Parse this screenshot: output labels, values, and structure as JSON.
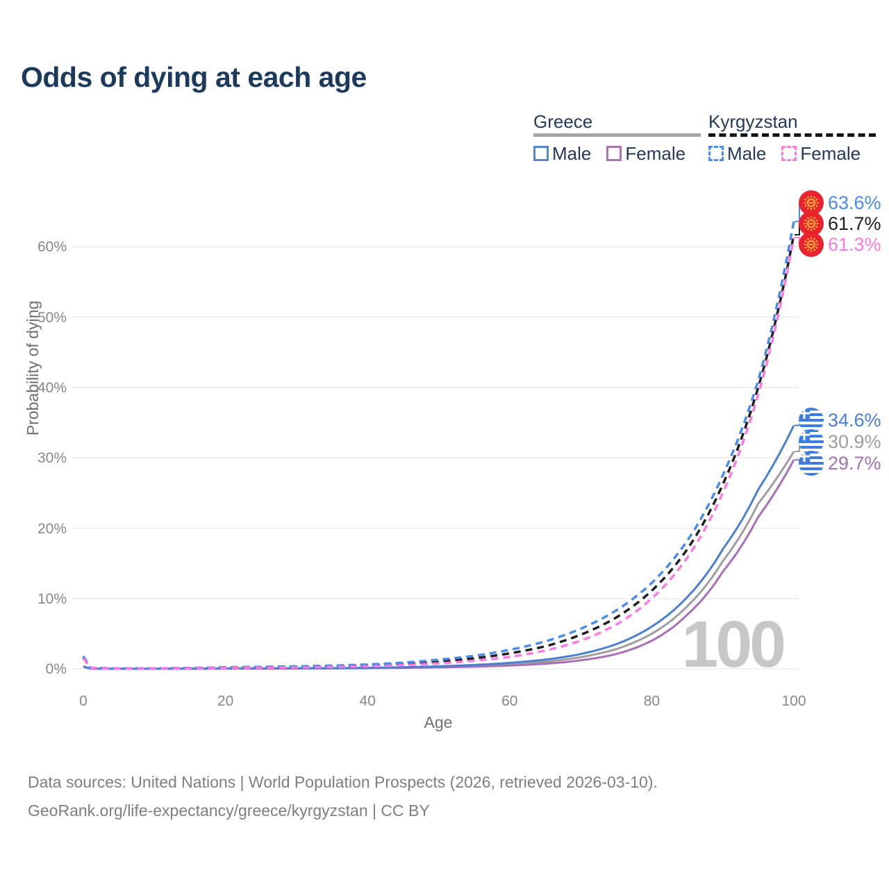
{
  "title": "Odds of dying at each age",
  "legend": {
    "groups": [
      {
        "id": "greece",
        "label": "Greece",
        "style": "solid",
        "items": [
          {
            "label": "Male"
          },
          {
            "label": "Female"
          }
        ]
      },
      {
        "id": "kyrgyzstan",
        "label": "Kyrgyzstan",
        "style": "dashed",
        "items": [
          {
            "label": "Male"
          },
          {
            "label": "Female"
          }
        ]
      }
    ]
  },
  "axes": {
    "y_title": "Probability of dying",
    "x_title": "Age",
    "y_ticks": [
      "0%",
      "10%",
      "20%",
      "30%",
      "40%",
      "50%",
      "60%"
    ],
    "x_ticks": [
      "0",
      "20",
      "40",
      "60",
      "80",
      "100"
    ]
  },
  "watermark": "100",
  "footer": {
    "line1": "Data sources: United Nations | World Population Prospects (2026, retrieved 2026-03-10).",
    "line2": "GeoRank.org/life-expectancy/greece/kyrgyzstan | CC BY"
  },
  "colors": {
    "title": "#1b3a5c",
    "legend_text": "#24395b",
    "greece_male": "#4a7fd0",
    "greece_female": "#a76fb5",
    "greece_total": "#9e9e9e",
    "kyrgyzstan_male": "#4b8bea",
    "kyrgyzstan_female": "#fb7ae3",
    "kyrgyzstan_total": "#1f1f1f",
    "gridline": "#ebebeb",
    "tick_text": "#878787",
    "watermark": "#c7c7c7",
    "flag_kyrgyzstan_red": "#e8232e",
    "flag_kyrgyzstan_yellow": "#efaa3d",
    "flag_greece_blue": "#3d7de0"
  },
  "chart_data": {
    "type": "line",
    "title": "Odds of dying at each age",
    "xlabel": "Age",
    "ylabel": "Probability of dying",
    "x_range": [
      0,
      100
    ],
    "y_range_percent": [
      0,
      66
    ],
    "grid": "horizontal",
    "legend_position": "top-right",
    "ages": [
      0,
      1,
      5,
      10,
      15,
      20,
      25,
      30,
      35,
      40,
      45,
      50,
      55,
      60,
      65,
      70,
      75,
      80,
      85,
      90,
      95,
      100
    ],
    "series": [
      {
        "id": "kyrgyzstan-male",
        "country": "Kyrgyzstan",
        "sex": "Male",
        "style": "dashed",
        "color": "#4b8bea",
        "flag": "kyrgyzstan",
        "end_label": "63.6%",
        "end_value": 63.6,
        "values": [
          1.8,
          0.15,
          0.06,
          0.065,
          0.13,
          0.22,
          0.28,
          0.36,
          0.46,
          0.62,
          0.88,
          1.3,
          1.85,
          2.7,
          3.9,
          5.7,
          8.3,
          12.2,
          18.2,
          27.5,
          41.0,
          63.6
        ]
      },
      {
        "id": "kyrgyzstan-total",
        "country": "Kyrgyzstan",
        "sex": "Both sexes",
        "style": "dashed",
        "color": "#1f1f1f",
        "flag": "kyrgyzstan",
        "end_label": "61.7%",
        "end_value": 61.7,
        "values": [
          1.65,
          0.135,
          0.055,
          0.06,
          0.105,
          0.165,
          0.21,
          0.28,
          0.36,
          0.49,
          0.7,
          1.04,
          1.5,
          2.2,
          3.2,
          4.85,
          7.3,
          11.1,
          17.0,
          26.2,
          40.0,
          61.7
        ]
      },
      {
        "id": "kyrgyzstan-female",
        "country": "Kyrgyzstan",
        "sex": "Female",
        "style": "dashed",
        "color": "#fb7ae3",
        "flag": "kyrgyzstan",
        "end_label": "61.3%",
        "end_value": 61.3,
        "values": [
          1.5,
          0.12,
          0.05,
          0.055,
          0.08,
          0.11,
          0.14,
          0.19,
          0.26,
          0.36,
          0.52,
          0.78,
          1.15,
          1.7,
          2.6,
          4.0,
          6.3,
          10.0,
          15.8,
          25.0,
          39.0,
          61.3
        ]
      },
      {
        "id": "greece-male",
        "country": "Greece",
        "sex": "Male",
        "style": "solid",
        "color": "#4a7fd0",
        "flag": "greece",
        "end_label": "34.6%",
        "end_value": 34.6,
        "values": [
          0.35,
          0.03,
          0.01,
          0.012,
          0.03,
          0.06,
          0.07,
          0.08,
          0.1,
          0.15,
          0.23,
          0.36,
          0.55,
          0.85,
          1.3,
          2.1,
          3.5,
          6.0,
          10.2,
          17.0,
          25.5,
          34.6
        ]
      },
      {
        "id": "greece-total",
        "country": "Greece",
        "sex": "Both sexes",
        "style": "solid",
        "color": "#9e9e9e",
        "flag": "greece",
        "end_label": "30.9%",
        "end_value": 30.9,
        "values": [
          0.33,
          0.025,
          0.009,
          0.011,
          0.025,
          0.045,
          0.05,
          0.06,
          0.08,
          0.12,
          0.18,
          0.28,
          0.43,
          0.65,
          1.0,
          1.65,
          2.8,
          5.0,
          8.9,
          15.3,
          23.5,
          30.9
        ]
      },
      {
        "id": "greece-female",
        "country": "Greece",
        "sex": "Female",
        "style": "solid",
        "color": "#a76fb5",
        "flag": "greece",
        "end_label": "29.7%",
        "end_value": 29.7,
        "values": [
          0.3,
          0.02,
          0.008,
          0.01,
          0.02,
          0.025,
          0.03,
          0.04,
          0.06,
          0.09,
          0.14,
          0.21,
          0.31,
          0.46,
          0.72,
          1.2,
          2.1,
          4.0,
          7.7,
          13.8,
          21.6,
          29.7
        ]
      }
    ]
  }
}
